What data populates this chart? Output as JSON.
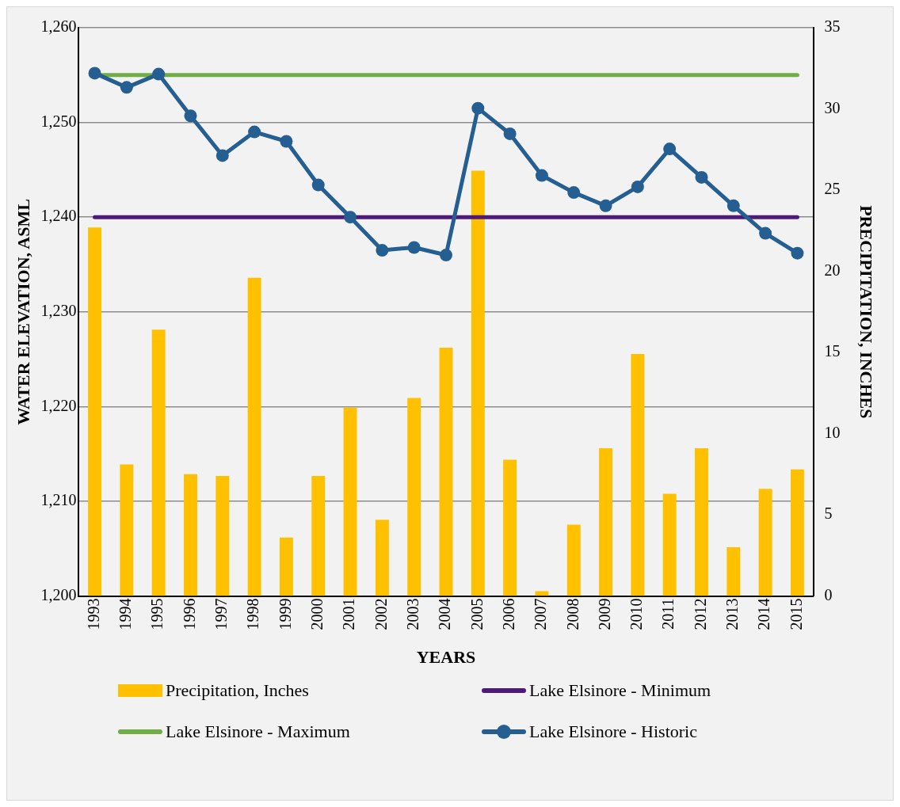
{
  "chart_data": {
    "type": "bar",
    "xlabel": "YEARS",
    "ylabel": "WATER ELEVATION, ASML",
    "y2label": "PRECIPITATION, INCHES",
    "categories": [
      "1993",
      "1994",
      "1995",
      "1996",
      "1997",
      "1998",
      "1999",
      "2000",
      "2001",
      "2002",
      "2003",
      "2004",
      "2005",
      "2006",
      "2007",
      "2008",
      "2009",
      "2010",
      "2011",
      "2012",
      "2013",
      "2014",
      "2015"
    ],
    "series": [
      {
        "name": "Precipitation, Inches",
        "axis": "y2",
        "color": "#ffc000",
        "values": [
          22.7,
          8.1,
          16.4,
          7.5,
          7.4,
          19.6,
          3.6,
          7.4,
          11.6,
          4.7,
          12.2,
          15.3,
          26.2,
          8.4,
          0.3,
          4.4,
          9.1,
          14.9,
          6.3,
          9.1,
          3.0,
          6.6,
          7.8
        ]
      },
      {
        "name": "Lake Elsinore - Minimum",
        "type": "line",
        "color": "#4e1979",
        "marker": "none",
        "values": [
          1240,
          1240,
          1240,
          1240,
          1240,
          1240,
          1240,
          1240,
          1240,
          1240,
          1240,
          1240,
          1240,
          1240,
          1240,
          1240,
          1240,
          1240,
          1240,
          1240,
          1240,
          1240,
          1240
        ]
      },
      {
        "name": "Lake Elsinore - Maximum",
        "type": "line",
        "color": "#70ad47",
        "marker": "none",
        "values": [
          1255,
          1255,
          1255,
          1255,
          1255,
          1255,
          1255,
          1255,
          1255,
          1255,
          1255,
          1255,
          1255,
          1255,
          1255,
          1255,
          1255,
          1255,
          1255,
          1255,
          1255,
          1255,
          1255
        ]
      },
      {
        "name": "Lake Elsinore - Historic",
        "type": "line",
        "color": "#255e91",
        "marker": "circle",
        "values": [
          1255.2,
          1253.7,
          1255.1,
          1250.7,
          1246.5,
          1249.0,
          1248.0,
          1243.4,
          1240.0,
          1236.5,
          1236.8,
          1236.0,
          1251.5,
          1248.8,
          1244.4,
          1242.6,
          1241.2,
          1243.2,
          1247.2,
          1244.2,
          1241.2,
          1238.3,
          1236.2
        ]
      }
    ],
    "ylim": [
      1200,
      1260
    ],
    "yticks": [
      {
        "value": 1200,
        "label": "1,200"
      },
      {
        "value": 1210,
        "label": "1,210"
      },
      {
        "value": 1220,
        "label": "1,220"
      },
      {
        "value": 1230,
        "label": "1,230"
      },
      {
        "value": 1240,
        "label": "1,240"
      },
      {
        "value": 1250,
        "label": "1,250"
      },
      {
        "value": 1260,
        "label": "1,260"
      }
    ],
    "y2lim": [
      0,
      35
    ],
    "y2ticks": [
      0,
      5,
      10,
      15,
      20,
      25,
      30,
      35
    ],
    "grid": "y",
    "legend": "bottom",
    "line_style": "solid"
  }
}
